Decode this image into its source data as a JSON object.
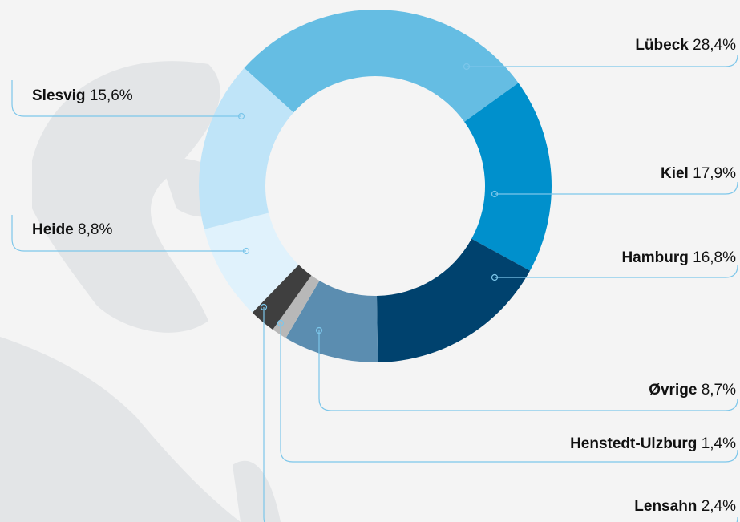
{
  "chart_data": {
    "type": "donut",
    "categories": [
      "Lübeck",
      "Kiel",
      "Hamburg",
      "Øvrige",
      "Henstedt-Ulzburg",
      "Lensahn",
      "Heide",
      "Slesvig"
    ],
    "values": [
      28.4,
      17.9,
      16.8,
      8.7,
      1.4,
      2.4,
      8.8,
      15.6
    ],
    "value_labels": [
      "28,4%",
      "17,9%",
      "16,8%",
      "8,7%",
      "1,4%",
      "2,4%",
      "8,8%",
      "15,6%"
    ],
    "colors": [
      "#65bde3",
      "#0090cc",
      "#00426e",
      "#5b8db0",
      "#b8b8b8",
      "#3f3f3f",
      "#e0f2fc",
      "#bfe4f8"
    ]
  }
}
